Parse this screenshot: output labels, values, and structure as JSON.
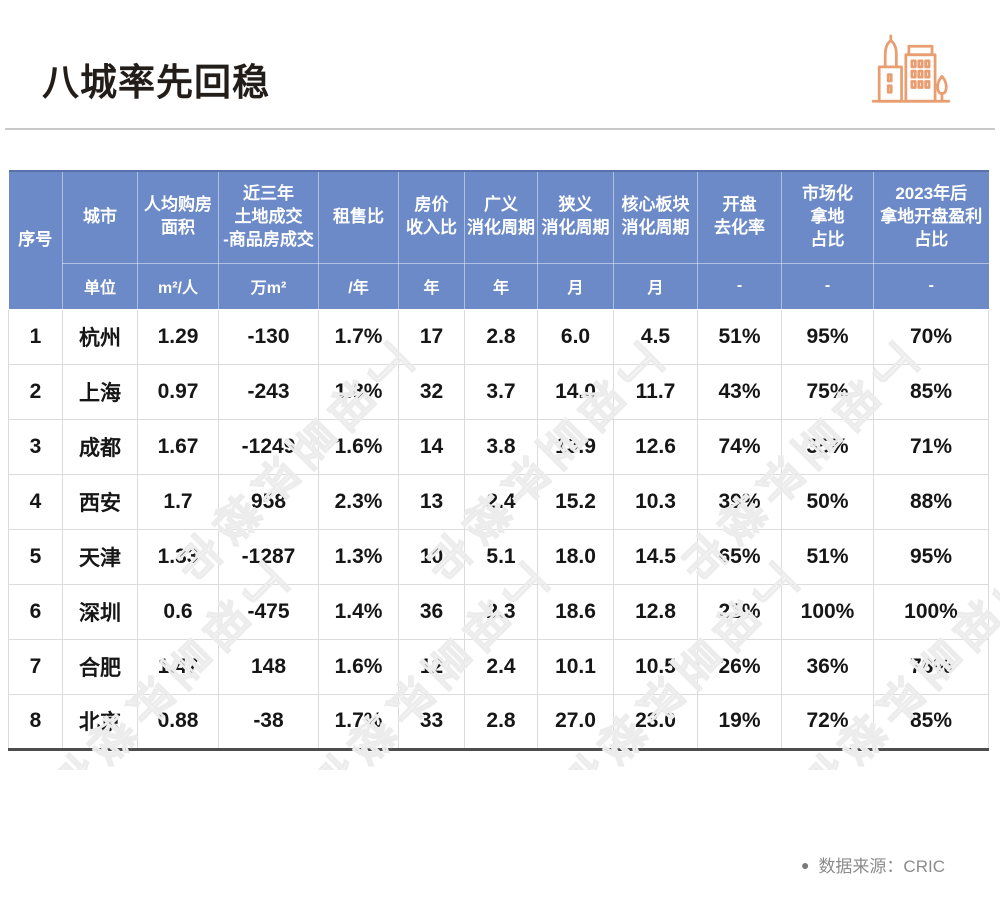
{
  "page": {
    "title": "八城率先回稳",
    "watermark": "丁祖昱评楼市",
    "source_dot": "●",
    "source_label": "数据来源：CRIC"
  },
  "colors": {
    "header_blue": "#6C8AC7",
    "accent_orange": "#E89E70",
    "grid_gray": "#DBDBDB",
    "text_dark": "#161616",
    "source_gray": "#8C8C8C"
  },
  "chart_data": {
    "type": "table",
    "title": "八城率先回稳",
    "source": "CRIC",
    "columns": [
      {
        "key": "index",
        "label": "序号",
        "unit": ""
      },
      {
        "key": "city",
        "label": "城市",
        "unit": "单位"
      },
      {
        "key": "area",
        "label": "人均购房\n面积",
        "unit": "m²/人"
      },
      {
        "key": "land",
        "label": "近三年\n土地成交\n-商品房成交",
        "unit": "万m²"
      },
      {
        "key": "rent-ratio",
        "label": "租售比",
        "unit": "/年"
      },
      {
        "key": "price-income",
        "label": "房价\n收入比",
        "unit": "年"
      },
      {
        "key": "broad-cycle",
        "label": "广义\n消化周期",
        "unit": "年"
      },
      {
        "key": "narrow-cycle",
        "label": "狭义\n消化周期",
        "unit": "月"
      },
      {
        "key": "core-cycle",
        "label": "核心板块\n消化周期",
        "unit": "月"
      },
      {
        "key": "opening-rate",
        "label": "开盘\n去化率",
        "unit": "-"
      },
      {
        "key": "market-land",
        "label": "市场化\n拿地\n占比",
        "unit": "-"
      },
      {
        "key": "profit-share",
        "label": "2023年后\n拿地开盘盈利\n占比",
        "unit": "-"
      }
    ],
    "rows": [
      [
        "1",
        "杭州",
        "1.29",
        "-130",
        "1.7%",
        "17",
        "2.8",
        "6.0",
        "4.5",
        "51%",
        "95%",
        "70%"
      ],
      [
        "2",
        "上海",
        "0.97",
        "-243",
        "1.8%",
        "32",
        "3.7",
        "14.0",
        "11.7",
        "43%",
        "75%",
        "85%"
      ],
      [
        "3",
        "成都",
        "1.67",
        "-1249",
        "1.6%",
        "14",
        "3.8",
        "13.9",
        "12.6",
        "74%",
        "35%",
        "71%"
      ],
      [
        "4",
        "西安",
        "1.7",
        "958",
        "2.3%",
        "13",
        "2.4",
        "15.2",
        "10.3",
        "39%",
        "50%",
        "88%"
      ],
      [
        "5",
        "天津",
        "1.33",
        "-1287",
        "1.3%",
        "10",
        "5.1",
        "18.0",
        "14.5",
        "65%",
        "51%",
        "95%"
      ],
      [
        "6",
        "深圳",
        "0.6",
        "-475",
        "1.4%",
        "36",
        "2.3",
        "18.6",
        "12.8",
        "21%",
        "100%",
        "100%"
      ],
      [
        "7",
        "合肥",
        "1.47",
        "148",
        "1.6%",
        "12",
        "2.4",
        "10.1",
        "10.5",
        "26%",
        "36%",
        "78%"
      ],
      [
        "8",
        "北京",
        "0.88",
        "-38",
        "1.7%",
        "33",
        "2.8",
        "27.0",
        "23.0",
        "19%",
        "72%",
        "85%"
      ]
    ]
  }
}
